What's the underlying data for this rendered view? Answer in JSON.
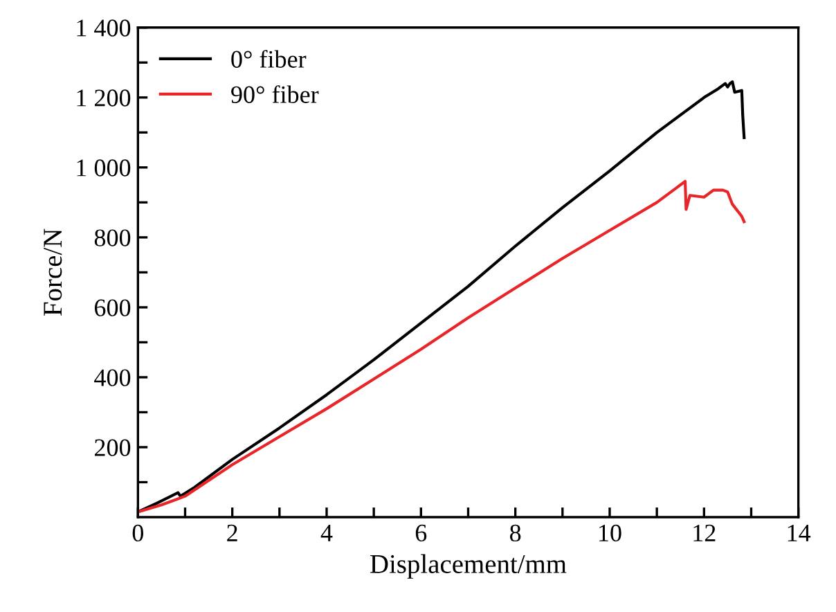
{
  "chart_data": {
    "type": "line",
    "xlabel": "Displacement/mm",
    "ylabel": "Force/N",
    "xlim": [
      0,
      14
    ],
    "ylim": [
      0,
      1400
    ],
    "xticks": [
      0,
      {
        "value": 1,
        "label": null
      },
      2,
      {
        "value": 3,
        "label": null
      },
      4,
      {
        "value": 5,
        "label": null
      },
      6,
      {
        "value": 7,
        "label": null
      },
      8,
      {
        "value": 9,
        "label": null
      },
      10,
      {
        "value": 11,
        "label": null
      },
      12,
      {
        "value": 13,
        "label": null
      },
      14
    ],
    "yticks": [
      {
        "value": 100,
        "label": null
      },
      {
        "value": 200,
        "label": "200"
      },
      {
        "value": 300,
        "label": null
      },
      {
        "value": 400,
        "label": "400"
      },
      {
        "value": 500,
        "label": null
      },
      {
        "value": 600,
        "label": "600"
      },
      {
        "value": 700,
        "label": null
      },
      {
        "value": 800,
        "label": "800"
      },
      {
        "value": 900,
        "label": null
      },
      {
        "value": 1000,
        "label": "1 000"
      },
      {
        "value": 1100,
        "label": null
      },
      {
        "value": 1200,
        "label": "1 200"
      },
      {
        "value": 1300,
        "label": null
      },
      {
        "value": 1400,
        "label": "1 400"
      }
    ],
    "grid": false,
    "legend": "top left",
    "marker": "none",
    "line_style": "solid",
    "series": [
      {
        "name": "0° fiber",
        "color": "#000000",
        "x": [
          0,
          0.4,
          0.85,
          0.9,
          1.2,
          2,
          3,
          4,
          5,
          6,
          7,
          8,
          9,
          10,
          11,
          11.5,
          12,
          12.3,
          12.45,
          12.5,
          12.55,
          12.6,
          12.65,
          12.8,
          12.82,
          12.85
        ],
        "values": [
          15,
          40,
          70,
          60,
          85,
          165,
          255,
          350,
          450,
          555,
          660,
          775,
          885,
          990,
          1100,
          1150,
          1200,
          1225,
          1240,
          1230,
          1240,
          1245,
          1215,
          1220,
          1150,
          1085
        ]
      },
      {
        "name": "90° fiber",
        "color": "#e8262a",
        "x": [
          0,
          0.5,
          1,
          2,
          3,
          4,
          5,
          6,
          7,
          8,
          9,
          10,
          11,
          11.4,
          11.6,
          11.62,
          11.7,
          12,
          12.2,
          12.4,
          12.5,
          12.6,
          12.8,
          12.85
        ],
        "values": [
          15,
          35,
          60,
          150,
          230,
          310,
          395,
          480,
          570,
          655,
          740,
          820,
          900,
          940,
          960,
          880,
          920,
          915,
          935,
          935,
          930,
          895,
          860,
          845
        ]
      }
    ]
  }
}
